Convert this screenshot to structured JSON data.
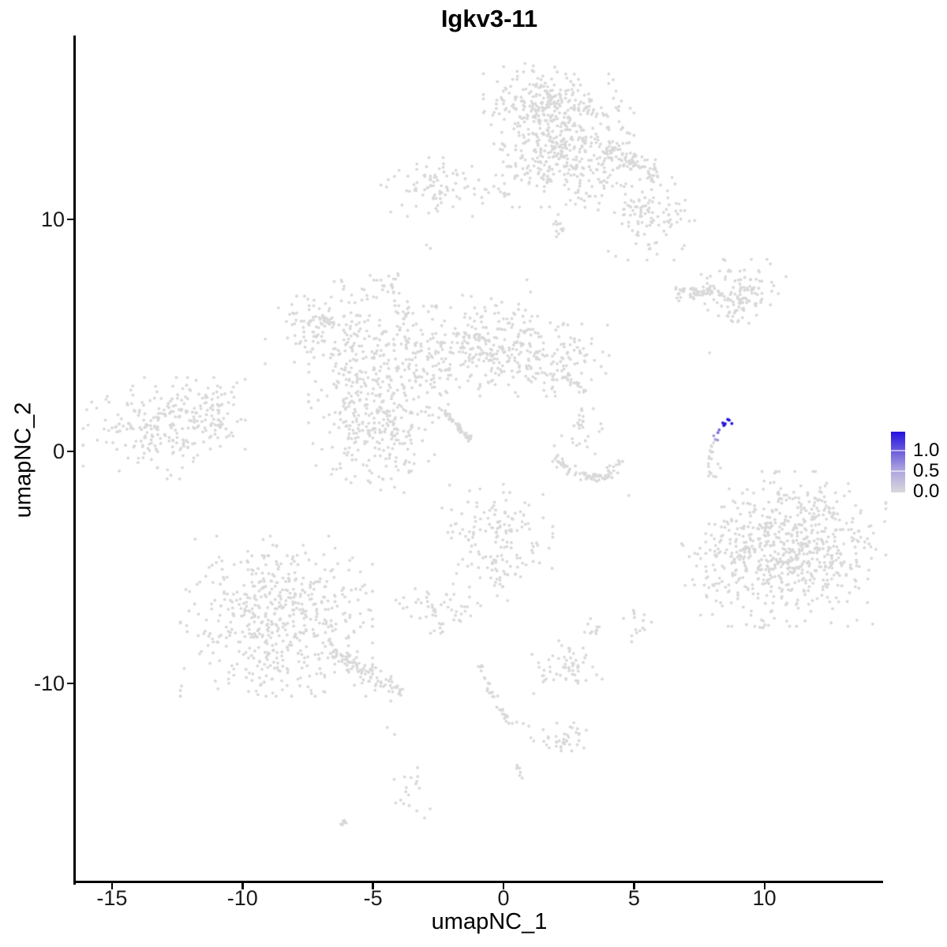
{
  "chart_data": {
    "type": "scatter",
    "title": "Igkv3-11",
    "xlabel": "umapNC_1",
    "ylabel": "umapNC_2",
    "xlim": [
      -16.4,
      14.4
    ],
    "ylim": [
      -18.6,
      17.9
    ],
    "x_ticks": [
      "-15",
      "-10",
      "-5",
      "0",
      "5",
      "10"
    ],
    "x_tick_values": [
      -15,
      -10,
      -5,
      0,
      5,
      10
    ],
    "y_ticks": [
      "-10",
      "0",
      "10"
    ],
    "y_tick_values": [
      -10,
      0,
      10
    ],
    "grid": false,
    "legend": {
      "position": "right",
      "labels": [
        "1.0",
        "0.5",
        "0.0"
      ],
      "values": [
        1.0,
        0.5,
        0.0
      ],
      "color_high": "#2412e0",
      "color_low": "#d8d8dc"
    },
    "point_color_gray": "#d8d8d8",
    "point_radius_px": 1.9,
    "clusters": [
      {
        "name": "top-blob-a",
        "type": "blob",
        "cx": 1.3,
        "cy": 15.0,
        "sx": 0.9,
        "sy": 0.75,
        "n": 170
      },
      {
        "name": "top-blob-b",
        "type": "blob",
        "cx": 2.7,
        "cy": 14.2,
        "sx": 1.0,
        "sy": 0.9,
        "n": 200
      },
      {
        "name": "top-blob-c",
        "type": "blob",
        "cx": 1.7,
        "cy": 12.6,
        "sx": 0.9,
        "sy": 0.9,
        "n": 150
      },
      {
        "name": "top-blob-d",
        "type": "blob",
        "cx": 3.3,
        "cy": 11.9,
        "sx": 0.7,
        "sy": 0.7,
        "n": 80
      },
      {
        "name": "top-arm",
        "type": "stripe",
        "x1": 4.0,
        "y1": 13.2,
        "x2": 5.9,
        "y2": 11.8,
        "w": 0.5,
        "n": 80
      },
      {
        "name": "top-arm-lobe",
        "type": "blob",
        "cx": 5.6,
        "cy": 10.2,
        "sx": 0.75,
        "sy": 0.85,
        "n": 110
      },
      {
        "name": "top-strand",
        "type": "stripe",
        "x1": 2.0,
        "y1": 10.3,
        "x2": 2.2,
        "y2": 8.9,
        "w": 0.25,
        "n": 12
      },
      {
        "name": "top-left-edge",
        "type": "blob",
        "cx": 0.0,
        "cy": 12.3,
        "sx": 0.3,
        "sy": 0.5,
        "n": 10
      },
      {
        "name": "upper-left-blob",
        "type": "blob",
        "cx": -2.4,
        "cy": 11.4,
        "sx": 1.0,
        "sy": 0.55,
        "n": 85
      },
      {
        "name": "upper-left-trail",
        "type": "stripe",
        "x1": -0.8,
        "y1": 11.3,
        "x2": 0.7,
        "y2": 11.1,
        "w": 0.2,
        "n": 10
      },
      {
        "name": "small-blob-west",
        "type": "blob",
        "cx": -4.5,
        "cy": 7.2,
        "sx": 0.4,
        "sy": 0.45,
        "n": 26
      },
      {
        "name": "right-band",
        "type": "stripe",
        "x1": 6.6,
        "y1": 6.8,
        "x2": 8.3,
        "y2": 6.9,
        "w": 0.28,
        "n": 55
      },
      {
        "name": "right-band-lobe",
        "type": "blob",
        "cx": 9.1,
        "cy": 6.9,
        "sx": 0.75,
        "sy": 0.6,
        "n": 110
      },
      {
        "name": "right-band-streak",
        "type": "stripe",
        "x1": 8.5,
        "y1": 5.9,
        "x2": 9.2,
        "y2": 6.2,
        "w": 0.12,
        "n": 10
      },
      {
        "name": "center-nw",
        "type": "blob",
        "cx": -6.6,
        "cy": 5.2,
        "sx": 1.1,
        "sy": 0.95,
        "n": 170
      },
      {
        "name": "center-w-column",
        "type": "blob",
        "cx": -5.4,
        "cy": 2.1,
        "sx": 0.9,
        "sy": 1.5,
        "n": 200
      },
      {
        "name": "center-mid",
        "type": "blob",
        "cx": -3.2,
        "cy": 3.5,
        "sx": 1.0,
        "sy": 1.2,
        "n": 170
      },
      {
        "name": "center-n",
        "type": "blob",
        "cx": -1.2,
        "cy": 4.5,
        "sx": 1.1,
        "sy": 0.8,
        "n": 150
      },
      {
        "name": "center-e",
        "type": "blob",
        "cx": 1.4,
        "cy": 4.1,
        "sx": 1.2,
        "sy": 0.75,
        "n": 170
      },
      {
        "name": "center-e-tip",
        "type": "stripe",
        "x1": 2.4,
        "y1": 3.3,
        "x2": 3.1,
        "y2": 2.5,
        "w": 0.3,
        "n": 22
      },
      {
        "name": "center-diag-streak",
        "type": "stripe",
        "x1": -2.45,
        "y1": 1.9,
        "x2": -1.25,
        "y2": 0.5,
        "w": 0.1,
        "n": 50
      },
      {
        "name": "center-upper-sparse",
        "type": "blob",
        "cx": -0.5,
        "cy": 5.8,
        "sx": 0.9,
        "sy": 0.5,
        "n": 30
      },
      {
        "name": "center-s",
        "type": "blob",
        "cx": -4.3,
        "cy": 0.3,
        "sx": 0.8,
        "sy": 0.9,
        "n": 90
      },
      {
        "name": "center-s-strand",
        "type": "blob",
        "cx": -6.15,
        "cy": 0.3,
        "sx": 0.3,
        "sy": 0.9,
        "n": 16
      },
      {
        "name": "center-link",
        "type": "stripe",
        "x1": -4.0,
        "y1": 5.2,
        "x2": -3.6,
        "y2": 6.4,
        "w": 0.18,
        "n": 10
      },
      {
        "name": "west-cluster",
        "type": "blob",
        "cx": -13.0,
        "cy": 1.0,
        "sx": 1.35,
        "sy": 0.95,
        "n": 240
      },
      {
        "name": "west-fringe",
        "type": "blob",
        "cx": -10.9,
        "cy": 2.0,
        "sx": 0.55,
        "sy": 0.6,
        "n": 35
      },
      {
        "name": "west-tail",
        "type": "stripe",
        "x1": -11.3,
        "y1": 1.2,
        "x2": -10.4,
        "y2": 1.0,
        "w": 0.15,
        "n": 8
      },
      {
        "name": "smile-arc-left",
        "type": "stripe",
        "x1": 2.0,
        "y1": -0.2,
        "x2": 2.7,
        "y2": -1.0,
        "w": 0.25,
        "n": 22
      },
      {
        "name": "smile-arc-mid",
        "type": "stripe",
        "x1": 2.7,
        "y1": -1.0,
        "x2": 3.75,
        "y2": -1.2,
        "w": 0.22,
        "n": 26
      },
      {
        "name": "smile-arc-right",
        "type": "stripe",
        "x1": 3.75,
        "y1": -1.2,
        "x2": 4.6,
        "y2": -0.35,
        "w": 0.22,
        "n": 22
      },
      {
        "name": "smile-upper-scatter",
        "type": "blob",
        "cx": 3.1,
        "cy": 0.7,
        "sx": 0.5,
        "sy": 0.55,
        "n": 18
      },
      {
        "name": "smile-vertical",
        "type": "stripe",
        "x1": 2.95,
        "y1": 1.9,
        "x2": 3.1,
        "y2": 1.0,
        "w": 0.12,
        "n": 9
      },
      {
        "name": "hook-gray-upper",
        "type": "stripe",
        "x1": 8.1,
        "y1": 0.6,
        "x2": 7.85,
        "y2": -0.5,
        "w": 0.1,
        "n": 9
      },
      {
        "name": "hook-gray-lower",
        "type": "stripe",
        "x1": 7.85,
        "y1": -0.5,
        "x2": 7.95,
        "y2": -1.1,
        "w": 0.1,
        "n": 5
      },
      {
        "name": "se-cluster-core",
        "type": "blob",
        "cx": 11.2,
        "cy": -4.2,
        "sx": 1.5,
        "sy": 1.45,
        "n": 600
      },
      {
        "name": "se-cluster-fringe",
        "type": "blob",
        "cx": 8.9,
        "cy": -4.6,
        "sx": 0.9,
        "sy": 1.3,
        "n": 110
      },
      {
        "name": "se-cluster-below",
        "type": "blob",
        "cx": 9.7,
        "cy": -7.5,
        "sx": 0.3,
        "sy": 0.15,
        "n": 6
      },
      {
        "name": "sw-cluster-core",
        "type": "blob",
        "cx": -8.7,
        "cy": -7.1,
        "sx": 1.6,
        "sy": 1.5,
        "n": 520
      },
      {
        "name": "sw-cluster-tail",
        "type": "stripe",
        "x1": -6.6,
        "y1": -8.6,
        "x2": -3.9,
        "y2": -10.5,
        "w": 0.4,
        "n": 90
      },
      {
        "name": "sw-cluster-south",
        "type": "blob",
        "cx": -8.9,
        "cy": -9.7,
        "sx": 0.8,
        "sy": 0.4,
        "n": 30
      },
      {
        "name": "south-center-blob",
        "type": "blob",
        "cx": -0.3,
        "cy": -3.9,
        "sx": 0.95,
        "sy": 1.1,
        "n": 150
      },
      {
        "name": "south-center-top-sparse",
        "type": "blob",
        "cx": -0.1,
        "cy": -2.3,
        "sx": 0.4,
        "sy": 0.3,
        "n": 6
      },
      {
        "name": "small-blob-sw",
        "type": "blob",
        "cx": -2.4,
        "cy": -6.8,
        "sx": 0.75,
        "sy": 0.45,
        "n": 55
      },
      {
        "name": "chain-1",
        "type": "stripe",
        "x1": -0.9,
        "y1": -9.2,
        "x2": -0.5,
        "y2": -10.3,
        "w": 0.15,
        "n": 12
      },
      {
        "name": "chain-2",
        "type": "stripe",
        "x1": -0.5,
        "y1": -10.3,
        "x2": 0.0,
        "y2": -11.3,
        "w": 0.15,
        "n": 12
      },
      {
        "name": "chain-3",
        "type": "stripe",
        "x1": 0.0,
        "y1": -11.3,
        "x2": 0.3,
        "y2": -11.8,
        "w": 0.12,
        "n": 8
      },
      {
        "name": "chain-blob",
        "type": "blob",
        "cx": 2.2,
        "cy": -12.5,
        "sx": 0.5,
        "sy": 0.35,
        "n": 40
      },
      {
        "name": "chain-streak",
        "type": "stripe",
        "x1": 0.5,
        "y1": -13.5,
        "x2": 0.65,
        "y2": -14.1,
        "w": 0.1,
        "n": 7
      },
      {
        "name": "south-blob-e",
        "type": "blob",
        "cx": 2.4,
        "cy": -9.4,
        "sx": 0.6,
        "sy": 0.45,
        "n": 55
      },
      {
        "name": "south-pair",
        "type": "blob",
        "cx": 3.4,
        "cy": -7.6,
        "sx": 0.18,
        "sy": 0.3,
        "n": 10
      },
      {
        "name": "south-small-e",
        "type": "blob",
        "cx": 5.1,
        "cy": -7.3,
        "sx": 0.25,
        "sy": 0.45,
        "n": 14
      },
      {
        "name": "deep-south-column",
        "type": "blob",
        "cx": -3.5,
        "cy": -14.4,
        "sx": 0.3,
        "sy": 0.7,
        "n": 18
      },
      {
        "name": "deep-south-streak",
        "type": "stripe",
        "x1": -6.2,
        "y1": -16.1,
        "x2": -5.8,
        "y2": -15.7,
        "w": 0.12,
        "n": 8
      },
      {
        "name": "expr-low",
        "type": "blob",
        "cx": 8.05,
        "cy": 0.6,
        "sx": 0.08,
        "sy": 0.1,
        "n": 3,
        "value": 0.3
      },
      {
        "name": "expr-mid",
        "type": "blob",
        "cx": 8.18,
        "cy": 0.85,
        "sx": 0.06,
        "sy": 0.06,
        "n": 2,
        "value": 0.55
      },
      {
        "name": "expr-high",
        "type": "blob",
        "cx": 8.45,
        "cy": 1.25,
        "sx": 0.13,
        "sy": 0.1,
        "n": 6,
        "value": 1.0
      },
      {
        "name": "expr-high-single",
        "type": "blob",
        "cx": 8.62,
        "cy": 1.36,
        "sx": 0.04,
        "sy": 0.04,
        "n": 1,
        "value": 1.0
      }
    ],
    "singles": [
      [
        -2.8,
        8.75
      ],
      [
        -2.95,
        8.9
      ],
      [
        0.9,
        7.4
      ],
      [
        7.9,
        4.25
      ],
      [
        4.8,
        -1.9
      ],
      [
        3.0,
        1.8
      ],
      [
        8.22,
        -0.54
      ],
      [
        8.31,
        -0.71
      ],
      [
        7.95,
        -0.95
      ],
      [
        0.51,
        -11.67
      ],
      [
        0.76,
        -11.73
      ],
      [
        0.97,
        -11.84
      ],
      [
        2.54,
        -8.5
      ],
      [
        2.12,
        -8.16
      ],
      [
        4.6,
        -7.2
      ],
      [
        -4.45,
        -11.9
      ],
      [
        -4.17,
        -12.2
      ],
      [
        9.9,
        -7.6
      ],
      [
        -9.9,
        3.1
      ]
    ]
  }
}
